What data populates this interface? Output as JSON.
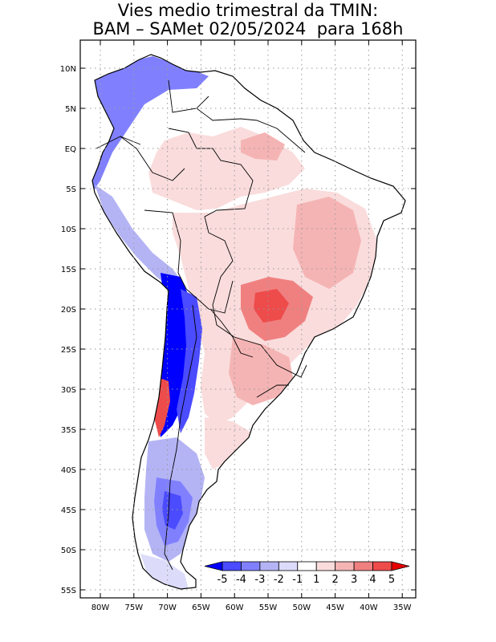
{
  "title": {
    "line1": "Vies medio trimestral da TMIN:",
    "line2": "BAM – SAMet 02/05/2024  para 168h"
  },
  "lon_labels": [
    "80W",
    "75W",
    "70W",
    "65W",
    "60W",
    "55W",
    "50W",
    "45W",
    "40W",
    "35W"
  ],
  "lat_labels": [
    "10N",
    "5N",
    "EQ",
    "5S",
    "10S",
    "15S",
    "20S",
    "25S",
    "30S",
    "35S",
    "40S",
    "45S",
    "50S",
    "55S"
  ],
  "colorbar": {
    "labels": [
      "-5",
      "-4",
      "-3",
      "-2",
      "-1",
      "1",
      "2",
      "3",
      "4",
      "5"
    ],
    "colors": [
      "#0000ff",
      "#4b4bff",
      "#8080ff",
      "#b4b4f5",
      "#dcdcfa",
      "#ffffff",
      "#fadcdc",
      "#f5b4b4",
      "#f08080",
      "#ee4b4b",
      "#e60000"
    ]
  },
  "palette": {
    "ocean": "#ffffff",
    "frame": "#000000",
    "grid": "#999999"
  }
}
